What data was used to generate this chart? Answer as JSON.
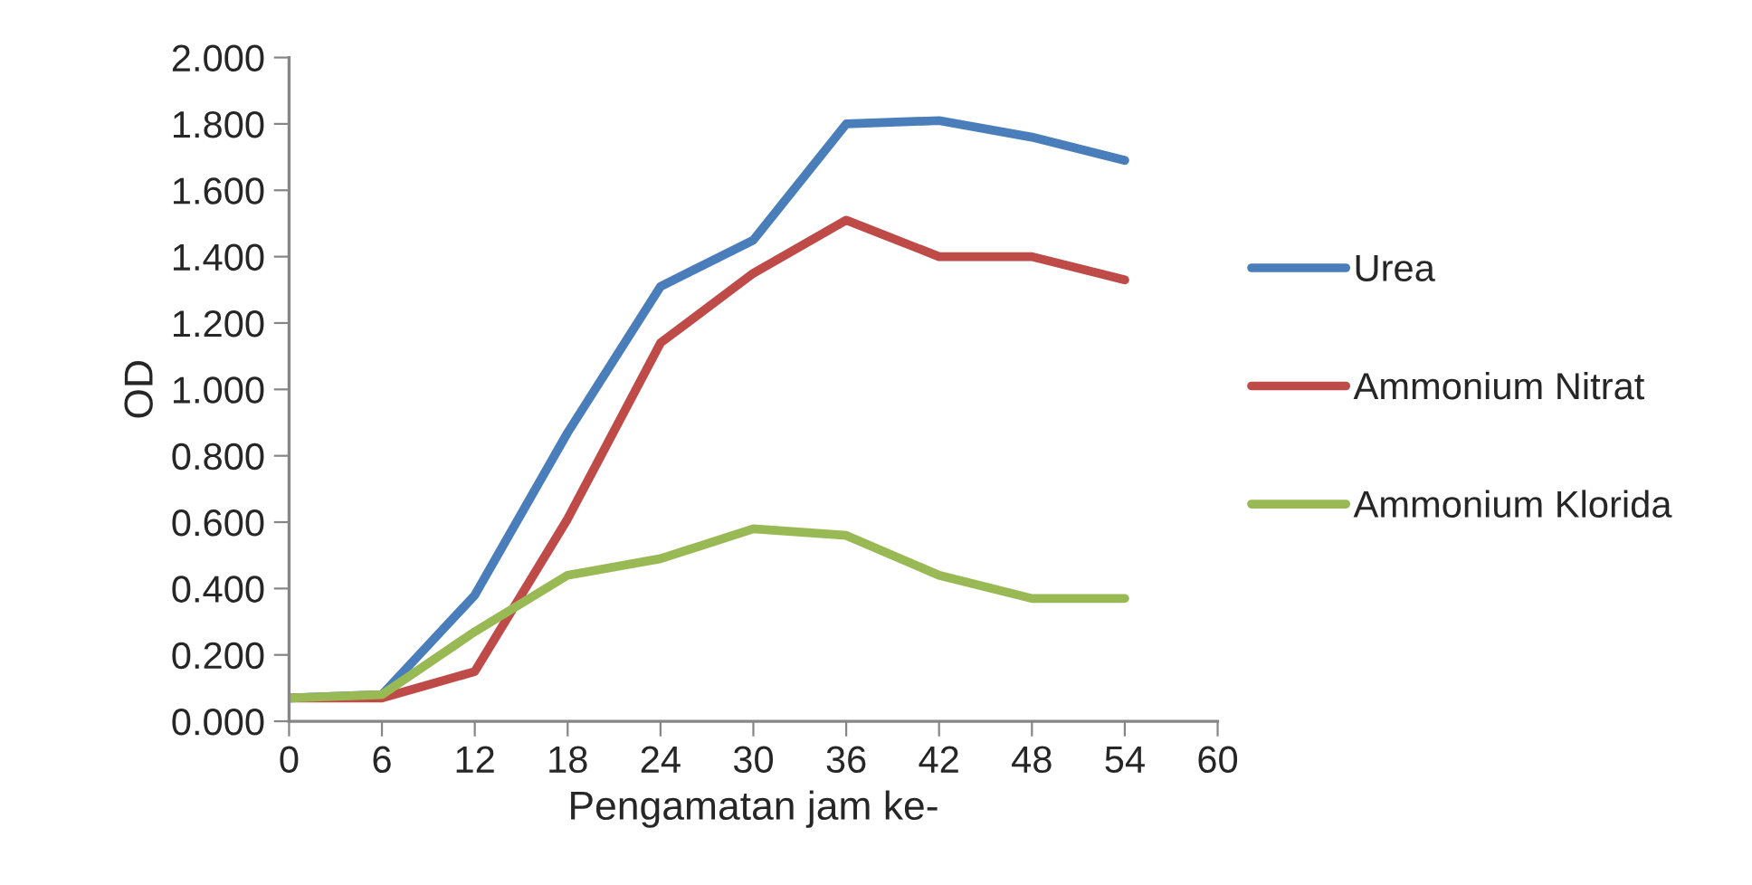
{
  "chart_data": {
    "type": "line",
    "xlabel": "Pengamatan jam ke-",
    "ylabel": "OD",
    "x": [
      0,
      6,
      12,
      18,
      24,
      30,
      36,
      42,
      48,
      54
    ],
    "series": [
      {
        "name": "Urea",
        "color": "#4a7ebb",
        "values": [
          0.07,
          0.08,
          0.38,
          0.87,
          1.31,
          1.45,
          1.8,
          1.81,
          1.76,
          1.69
        ]
      },
      {
        "name": "Ammonium Nitrat",
        "color": "#be4b48",
        "values": [
          0.07,
          0.07,
          0.15,
          0.61,
          1.14,
          1.35,
          1.51,
          1.4,
          1.4,
          1.33
        ]
      },
      {
        "name": "Ammonium Klorida",
        "color": "#98b954",
        "values": [
          0.07,
          0.08,
          0.27,
          0.44,
          0.49,
          0.58,
          0.56,
          0.44,
          0.37,
          0.37
        ]
      }
    ],
    "xlim": [
      0,
      60
    ],
    "xticks": [
      0,
      6,
      12,
      18,
      24,
      30,
      36,
      42,
      48,
      54,
      60
    ],
    "ylim": [
      0,
      2
    ],
    "yticks": [
      {
        "value": 0,
        "label": "0.000"
      },
      {
        "value": 0.2,
        "label": "0.200"
      },
      {
        "value": 0.4,
        "label": "0.400"
      },
      {
        "value": 0.6,
        "label": "0.600"
      },
      {
        "value": 0.8,
        "label": "0.800"
      },
      {
        "value": 1.0,
        "label": "1.000"
      },
      {
        "value": 1.2,
        "label": "1.200"
      },
      {
        "value": 1.4,
        "label": "1.400"
      },
      {
        "value": 1.6,
        "label": "1.600"
      },
      {
        "value": 1.8,
        "label": "1.800"
      },
      {
        "value": 2.0,
        "label": "2.000"
      }
    ],
    "grid": false,
    "legend": "right",
    "marker": "none",
    "line_style": "solid"
  }
}
